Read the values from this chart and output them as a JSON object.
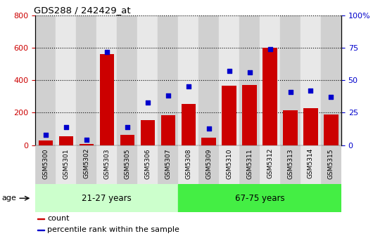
{
  "title": "GDS288 / 242429_at",
  "samples": [
    "GSM5300",
    "GSM5301",
    "GSM5302",
    "GSM5303",
    "GSM5305",
    "GSM5306",
    "GSM5307",
    "GSM5308",
    "GSM5309",
    "GSM5310",
    "GSM5311",
    "GSM5312",
    "GSM5313",
    "GSM5314",
    "GSM5315"
  ],
  "counts": [
    30,
    55,
    5,
    560,
    65,
    155,
    185,
    255,
    45,
    365,
    370,
    600,
    215,
    230,
    190
  ],
  "percentiles": [
    8,
    14,
    4,
    72,
    14,
    33,
    38,
    45,
    13,
    57,
    56,
    74,
    41,
    42,
    37
  ],
  "bar_color": "#cc0000",
  "dot_color": "#0000cc",
  "left_ylim": [
    0,
    800
  ],
  "right_ylim": [
    0,
    100
  ],
  "left_yticks": [
    0,
    200,
    400,
    600,
    800
  ],
  "right_yticks": [
    0,
    25,
    50,
    75,
    100
  ],
  "right_yticklabels": [
    "0",
    "25",
    "50",
    "75",
    "100%"
  ],
  "group1_label": "21-27 years",
  "group2_label": "67-75 years",
  "n_group1": 7,
  "n_group2": 8,
  "age_label": "age",
  "legend_count": "count",
  "legend_percentile": "percentile rank within the sample",
  "col_bg_even": "#d0d0d0",
  "col_bg_odd": "#e8e8e8",
  "group1_bg": "#ccffcc",
  "group2_bg": "#44ee44",
  "grid_color": "#000000",
  "grid_style": "dotted"
}
